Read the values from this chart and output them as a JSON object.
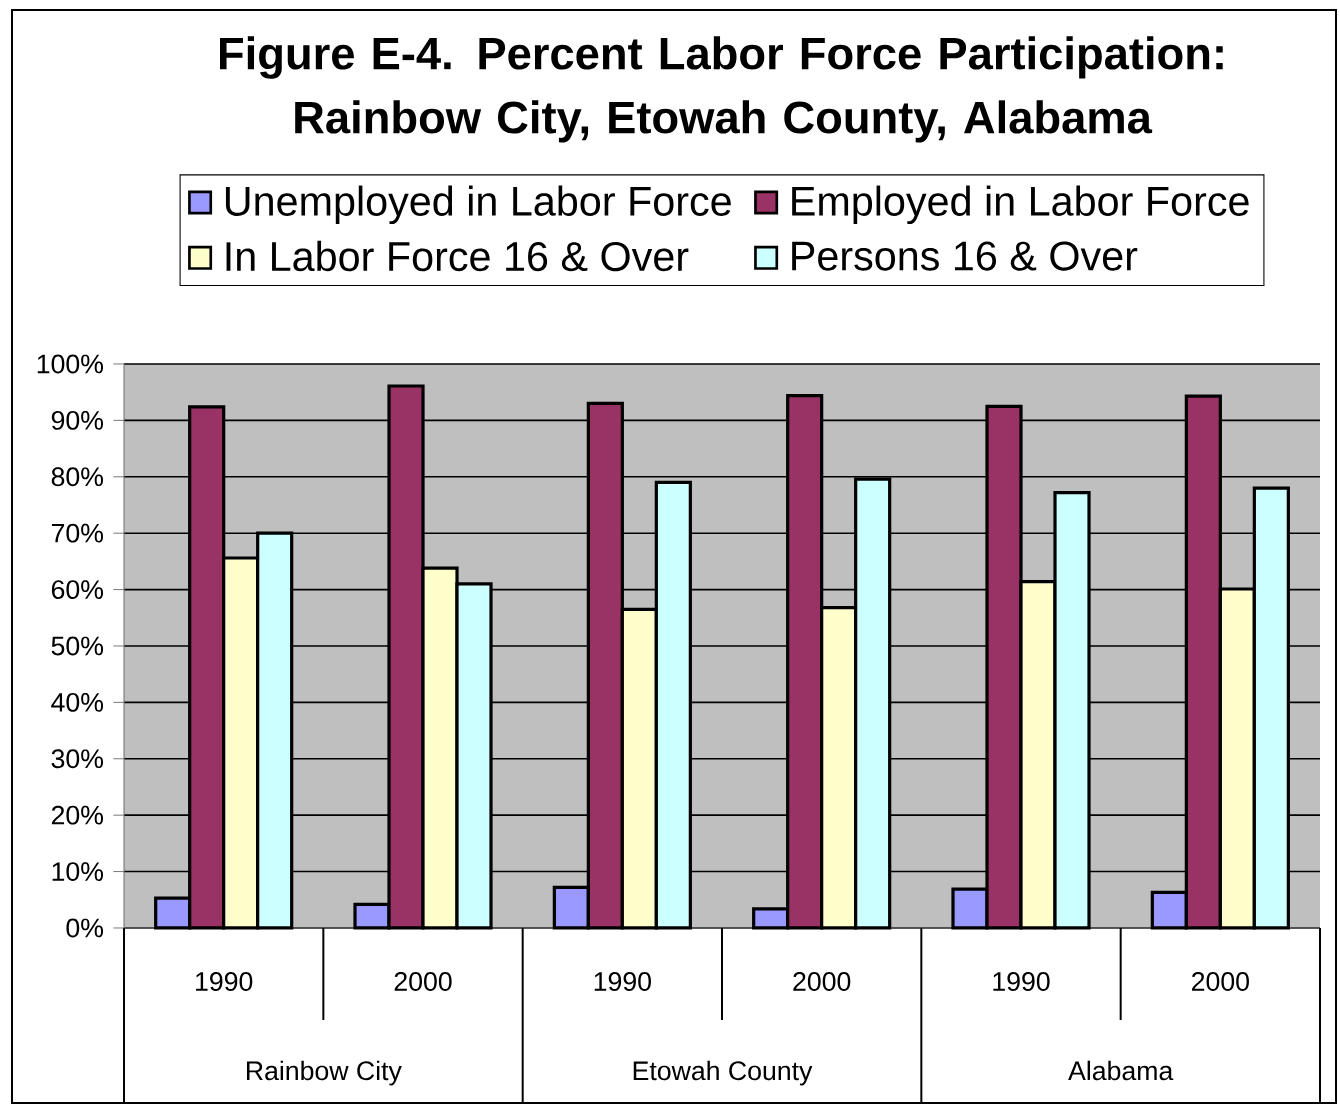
{
  "chart_data": {
    "type": "bar",
    "title": "Figure E-4. Percent Labor Force Participation: Rainbow City, Etowah County, Alabama",
    "categories": [
      "1990",
      "2000",
      "1990",
      "2000",
      "1990",
      "2000"
    ],
    "annotations": [
      "Rainbow City",
      "Etowah County",
      "Alabama"
    ],
    "series": [
      {
        "name": "Unemployed in Labor Force",
        "color": "#9999ff",
        "values": [
          5.3,
          4.2,
          7.2,
          3.4,
          6.9,
          6.3
        ]
      },
      {
        "name": "Employed in Labor Force",
        "color": "#993366",
        "values": [
          92.4,
          96.1,
          93.0,
          94.4,
          92.5,
          94.3
        ]
      },
      {
        "name": "In Labor Force 16 & Over",
        "color": "#ffffcc",
        "values": [
          65.6,
          63.8,
          56.5,
          56.8,
          61.4,
          60.1
        ]
      },
      {
        "name": "Persons 16 & Over",
        "color": "#ccffff",
        "values": [
          70.0,
          61.0,
          79.0,
          79.6,
          77.2,
          78.0
        ]
      }
    ],
    "ylim": [
      0,
      100
    ],
    "yticks": [
      {
        "value": 0,
        "label": "0%"
      },
      {
        "value": 10,
        "label": "10%"
      },
      {
        "value": 20,
        "label": "20%"
      },
      {
        "value": 30,
        "label": "30%"
      },
      {
        "value": 40,
        "label": "40%"
      },
      {
        "value": 50,
        "label": "50%"
      },
      {
        "value": 60,
        "label": "60%"
      },
      {
        "value": 70,
        "label": "70%"
      },
      {
        "value": 80,
        "label": "80%"
      },
      {
        "value": 90,
        "label": "90%"
      },
      {
        "value": 100,
        "label": "100%"
      }
    ],
    "grid": "y",
    "legend": "top"
  }
}
